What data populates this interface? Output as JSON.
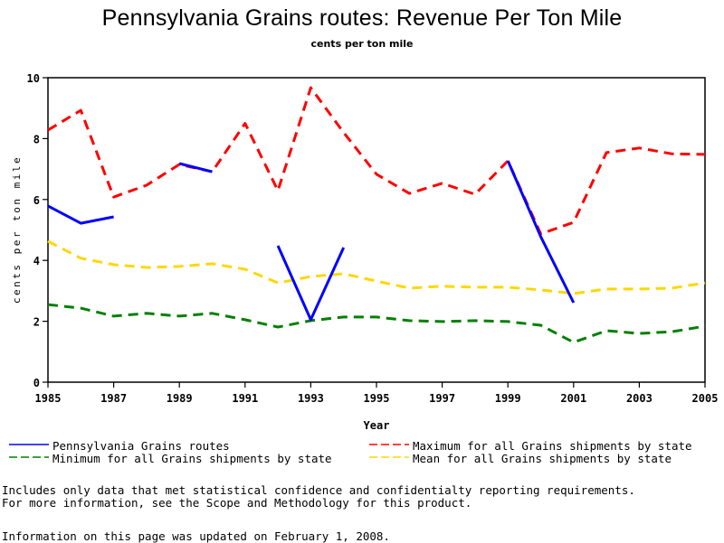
{
  "chart_data": {
    "type": "line",
    "title": "Pennsylvania Grains routes: Revenue Per Ton Mile",
    "subtitle": "cents per ton mile",
    "xlabel": "Year",
    "ylabel": "cents per ton mile",
    "xlim": [
      1985,
      2005
    ],
    "ylim": [
      0,
      10
    ],
    "x_ticks": [
      "1985",
      "1987",
      "1989",
      "1991",
      "1993",
      "1995",
      "1997",
      "1999",
      "2001",
      "2003",
      "2005"
    ],
    "y_ticks": [
      "0",
      "2",
      "4",
      "6",
      "8",
      "10"
    ],
    "grid": false,
    "legend_position": "bottom",
    "series": [
      {
        "name": "Pennsylvania Grains routes",
        "color": "#0000ff",
        "style": "solid",
        "segments": [
          {
            "x": [
              1985,
              1986,
              1987
            ],
            "y": [
              5.79,
              5.22,
              5.43
            ]
          },
          {
            "x": [
              1989,
              1990
            ],
            "y": [
              7.18,
              6.91
            ]
          },
          {
            "x": [
              1992,
              1993,
              1994
            ],
            "y": [
              4.48,
              2.05,
              4.42
            ]
          },
          {
            "x": [
              1999,
              2000,
              2001
            ],
            "y": [
              7.27,
              4.78,
              2.61
            ]
          }
        ]
      },
      {
        "name": "Maximum for all Grains shipments by state",
        "color": "#ff0000",
        "style": "dashed",
        "x": [
          1985,
          1986,
          1987,
          1988,
          1989,
          1990,
          1991,
          1992,
          1993,
          1994,
          1995,
          1996,
          1997,
          1998,
          1999,
          2000,
          2001,
          2002,
          2003,
          2004,
          2005
        ],
        "y": [
          8.28,
          8.93,
          6.08,
          6.47,
          7.15,
          6.91,
          8.5,
          6.29,
          9.67,
          8.2,
          6.83,
          6.2,
          6.53,
          6.17,
          7.27,
          4.87,
          5.25,
          7.54,
          7.69,
          7.5,
          7.48
        ]
      },
      {
        "name": "Minimum for all Grains shipments by state",
        "color": "#008000",
        "style": "dashed",
        "x": [
          1985,
          1986,
          1987,
          1988,
          1989,
          1990,
          1991,
          1992,
          1993,
          1994,
          1995,
          1996,
          1997,
          1998,
          1999,
          2000,
          2001,
          2002,
          2003,
          2004,
          2005
        ],
        "y": [
          2.55,
          2.43,
          2.17,
          2.26,
          2.17,
          2.26,
          2.05,
          1.81,
          2.02,
          2.14,
          2.14,
          2.02,
          1.99,
          2.02,
          1.99,
          1.87,
          1.31,
          1.69,
          1.6,
          1.66,
          1.84
        ]
      },
      {
        "name": "Mean for all Grains shipments by state",
        "color": "#ffd700",
        "style": "dashed",
        "x": [
          1985,
          1986,
          1987,
          1988,
          1989,
          1990,
          1991,
          1992,
          1993,
          1994,
          1995,
          1996,
          1997,
          1998,
          1999,
          2000,
          2001,
          2002,
          2003,
          2004,
          2005
        ],
        "y": [
          4.63,
          4.07,
          3.86,
          3.77,
          3.8,
          3.89,
          3.71,
          3.26,
          3.47,
          3.56,
          3.32,
          3.09,
          3.15,
          3.12,
          3.12,
          3.03,
          2.91,
          3.06,
          3.06,
          3.09,
          3.26
        ]
      }
    ]
  },
  "legend": [
    {
      "label": "Pennsylvania Grains routes",
      "color": "#0000ff",
      "style": "solid"
    },
    {
      "label": "Maximum for all Grains shipments by state",
      "color": "#ff0000",
      "style": "dashed"
    },
    {
      "label": "Minimum for all Grains shipments by state",
      "color": "#008000",
      "style": "dashed"
    },
    {
      "label": "Mean for all Grains shipments by state",
      "color": "#ffd700",
      "style": "dashed"
    }
  ],
  "footnotes": {
    "line1": "Includes only data that met statistical confidence and confidentialty reporting requirements.",
    "line2": "For more information, see the Scope and Methodology for this product.",
    "updated": "Information on this page was updated on February 1, 2008."
  }
}
